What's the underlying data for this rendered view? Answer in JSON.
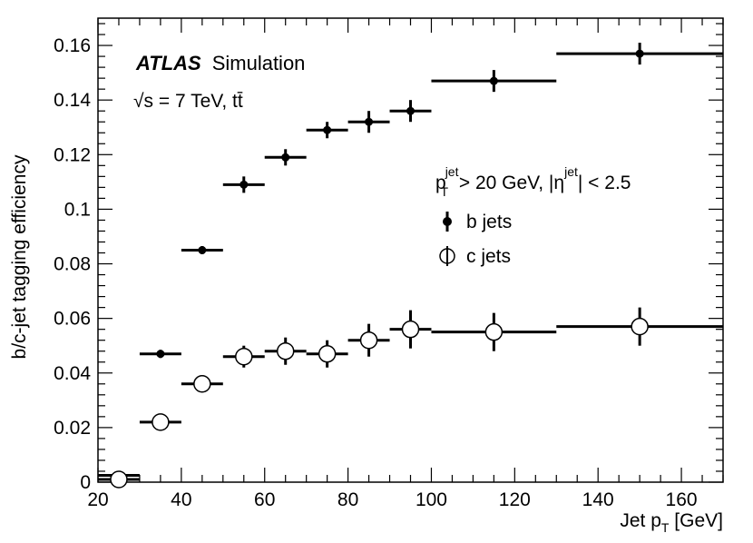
{
  "chart_data": {
    "type": "scatter",
    "title": "",
    "xlabel": "Jet p_T [GeV]",
    "xlabel_main": "Jet p",
    "xlabel_sub": "T",
    "xlabel_unit": "[GeV]",
    "ylabel": "b/c-jet tagging efficiency",
    "xlim": [
      20,
      170
    ],
    "ylim": [
      0,
      0.17
    ],
    "x_ticks": [
      20,
      40,
      60,
      80,
      100,
      120,
      140,
      160
    ],
    "x_tick_labels": [
      "20",
      "40",
      "60",
      "80",
      "100",
      "120",
      "140",
      "160"
    ],
    "y_ticks": [
      0,
      0.02,
      0.04,
      0.06,
      0.08,
      0.1,
      0.12,
      0.14,
      0.16
    ],
    "y_tick_labels": [
      "0",
      "0.02",
      "0.04",
      "0.06",
      "0.08",
      "0.1",
      "0.12",
      "0.14",
      "0.16"
    ],
    "grid": false,
    "legend_position": "right",
    "annotations": {
      "experiment": "ATLAS",
      "experiment_suffix": "Simulation",
      "energy_sqrt": "√",
      "energy_rest": "s = 7 TeV, tt̄",
      "cut_p": "p",
      "cut_p_sub": "T",
      "cut_p_sup": "jet",
      "cut_mid": " > 20 GeV, |η",
      "cut_eta_sup": "jet",
      "cut_end": "| < 2.5"
    },
    "series": [
      {
        "name": "b jets",
        "marker": "filled",
        "points": [
          {
            "x_low": 20,
            "x_high": 30,
            "x": 25,
            "y": 0.0025,
            "err": 0.0005
          },
          {
            "x_low": 30,
            "x_high": 40,
            "x": 35,
            "y": 0.047,
            "err": 0.0015
          },
          {
            "x_low": 40,
            "x_high": 50,
            "x": 45,
            "y": 0.085,
            "err": 0.0015
          },
          {
            "x_low": 50,
            "x_high": 60,
            "x": 55,
            "y": 0.109,
            "err": 0.003
          },
          {
            "x_low": 60,
            "x_high": 70,
            "x": 65,
            "y": 0.119,
            "err": 0.003
          },
          {
            "x_low": 70,
            "x_high": 80,
            "x": 75,
            "y": 0.129,
            "err": 0.003
          },
          {
            "x_low": 80,
            "x_high": 90,
            "x": 85,
            "y": 0.132,
            "err": 0.004
          },
          {
            "x_low": 90,
            "x_high": 100,
            "x": 95,
            "y": 0.136,
            "err": 0.004
          },
          {
            "x_low": 100,
            "x_high": 130,
            "x": 115,
            "y": 0.147,
            "err": 0.004
          },
          {
            "x_low": 130,
            "x_high": 170,
            "x": 150,
            "y": 0.157,
            "err": 0.004
          }
        ]
      },
      {
        "name": "c jets",
        "marker": "open",
        "points": [
          {
            "x_low": 20,
            "x_high": 30,
            "x": 25,
            "y": 0.001,
            "err": 0.0005
          },
          {
            "x_low": 30,
            "x_high": 40,
            "x": 35,
            "y": 0.022,
            "err": 0.001
          },
          {
            "x_low": 40,
            "x_high": 50,
            "x": 45,
            "y": 0.036,
            "err": 0.003
          },
          {
            "x_low": 50,
            "x_high": 60,
            "x": 55,
            "y": 0.046,
            "err": 0.004
          },
          {
            "x_low": 60,
            "x_high": 70,
            "x": 65,
            "y": 0.048,
            "err": 0.005
          },
          {
            "x_low": 70,
            "x_high": 80,
            "x": 75,
            "y": 0.047,
            "err": 0.005
          },
          {
            "x_low": 80,
            "x_high": 90,
            "x": 85,
            "y": 0.052,
            "err": 0.006
          },
          {
            "x_low": 90,
            "x_high": 100,
            "x": 95,
            "y": 0.056,
            "err": 0.007
          },
          {
            "x_low": 100,
            "x_high": 130,
            "x": 115,
            "y": 0.055,
            "err": 0.007
          },
          {
            "x_low": 130,
            "x_high": 170,
            "x": 150,
            "y": 0.057,
            "err": 0.007
          }
        ]
      }
    ]
  }
}
